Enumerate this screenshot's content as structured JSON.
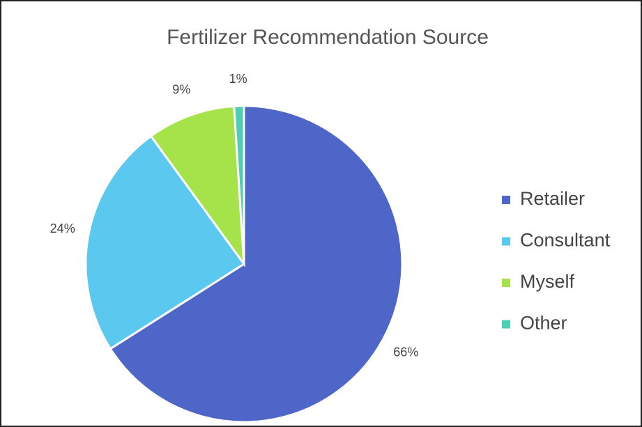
{
  "chart_data": {
    "type": "pie",
    "title": "Fertilizer Recommendation Source",
    "categories": [
      "Retailer",
      "Consultant",
      "Myself",
      "Other"
    ],
    "values": [
      66,
      24,
      9,
      1
    ],
    "value_labels": [
      "66%",
      "24%",
      "9%",
      "1%"
    ],
    "colors": [
      "#4f66c9",
      "#5bc8f0",
      "#a6e34a",
      "#4ecfb3"
    ],
    "legend": "right"
  }
}
